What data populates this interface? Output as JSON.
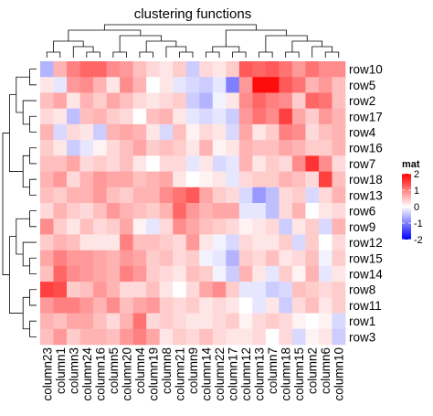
{
  "chart_data": {
    "type": "heatmap",
    "title": "clustering functions",
    "legend": {
      "title": "mat",
      "ticks": [
        2,
        1,
        0,
        -1,
        -2
      ],
      "range": [
        -2,
        2
      ],
      "colors": {
        "low": "#0000ff",
        "mid": "#ffffff",
        "high": "#ff0000"
      },
      "placement": "right"
    },
    "columns": [
      "column23",
      "column1",
      "column3",
      "column24",
      "column16",
      "column5",
      "column20",
      "column4",
      "column19",
      "column8",
      "column21",
      "column9",
      "column14",
      "column22",
      "column17",
      "column12",
      "column13",
      "column7",
      "column18",
      "column15",
      "column2",
      "column6",
      "column10"
    ],
    "rows": [
      "row10",
      "row5",
      "row2",
      "row17",
      "row4",
      "row16",
      "row7",
      "row18",
      "row13",
      "row6",
      "row9",
      "row12",
      "row15",
      "row14",
      "row8",
      "row11",
      "row1",
      "row3"
    ],
    "values": [
      [
        -0.6,
        0.6,
        1.0,
        1.2,
        1.2,
        0.9,
        0.8,
        0.5,
        0.3,
        0.2,
        0.4,
        -0.4,
        0.3,
        0.2,
        0.4,
        1.3,
        1.2,
        1.3,
        1.1,
        0.8,
        1.1,
        0.9,
        0.9
      ],
      [
        0.2,
        -0.2,
        0.8,
        0.9,
        0.6,
        0.2,
        0.9,
        0.6,
        0.0,
        0.2,
        -0.2,
        -0.3,
        -0.4,
        -0.2,
        -1.0,
        0.8,
        1.9,
        1.9,
        1.3,
        1.1,
        0.6,
        0.8,
        0.5
      ],
      [
        0.5,
        0.7,
        0.2,
        0.6,
        0.4,
        0.7,
        0.5,
        0.3,
        0.2,
        0.3,
        0.4,
        -0.4,
        -0.6,
        -0.1,
        0.2,
        0.9,
        1.2,
        1.0,
        0.9,
        0.4,
        1.2,
        1.1,
        0.5
      ],
      [
        0.3,
        0.2,
        -0.5,
        0.5,
        0.6,
        0.4,
        0.3,
        0.0,
        0.5,
        0.6,
        0.2,
        -0.2,
        -0.3,
        -0.2,
        -0.4,
        0.8,
        1.1,
        0.9,
        1.5,
        0.7,
        0.4,
        0.8,
        0.6
      ],
      [
        0.6,
        -0.3,
        0.3,
        0.2,
        -0.4,
        0.6,
        0.7,
        0.6,
        0.2,
        -0.3,
        0.5,
        0.1,
        0.3,
        0.2,
        -0.3,
        0.7,
        0.2,
        0.4,
        1.0,
        0.9,
        0.3,
        0.5,
        0.6
      ],
      [
        0.4,
        0.2,
        -0.4,
        -0.2,
        0.1,
        0.3,
        0.5,
        0.7,
        0.4,
        0.5,
        0.4,
        0.2,
        0.6,
        0.1,
        0.2,
        0.6,
        0.5,
        0.5,
        0.7,
        0.6,
        0.4,
        0.4,
        0.6
      ],
      [
        0.5,
        0.5,
        0.7,
        0.3,
        0.4,
        0.3,
        0.5,
        0.2,
        0.0,
        0.3,
        0.3,
        -0.2,
        0.2,
        -0.3,
        -0.2,
        0.6,
        0.2,
        0.4,
        0.3,
        0.9,
        1.6,
        0.9,
        0.3
      ],
      [
        0.6,
        0.8,
        0.3,
        0.6,
        0.8,
        0.7,
        0.7,
        0.5,
        0.6,
        0.7,
        0.2,
        0.0,
        0.1,
        0.2,
        -0.2,
        0.3,
        0.4,
        0.4,
        0.6,
        0.5,
        0.3,
        1.5,
        0.5
      ],
      [
        0.5,
        0.4,
        0.6,
        0.6,
        0.8,
        0.5,
        0.4,
        0.6,
        0.6,
        0.9,
        1.1,
        1.3,
        0.7,
        0.4,
        0.3,
        -0.3,
        -0.8,
        -0.5,
        0.3,
        0.4,
        -0.3,
        0.3,
        0.6
      ],
      [
        0.3,
        0.6,
        0.4,
        0.3,
        0.5,
        0.8,
        0.6,
        0.5,
        0.4,
        0.6,
        1.2,
        0.8,
        0.6,
        0.7,
        0.7,
        -0.2,
        -0.2,
        -0.5,
        0.3,
        0.6,
        0.0,
        0.2,
        0.3
      ],
      [
        0.9,
        0.4,
        0.2,
        0.5,
        0.3,
        0.4,
        0.7,
        0.1,
        -0.2,
        0.3,
        0.9,
        0.7,
        0.5,
        0.4,
        0.3,
        0.1,
        0.2,
        0.3,
        -0.4,
        0.2,
        0.4,
        -0.3,
        0.6
      ],
      [
        0.4,
        0.6,
        0.5,
        0.2,
        0.2,
        0.2,
        1.0,
        0.5,
        0.5,
        0.4,
        0.3,
        0.8,
        0.2,
        -0.1,
        -0.3,
        0.3,
        0.2,
        0.2,
        0.4,
        -0.3,
        0.4,
        0.0,
        0.3
      ],
      [
        0.7,
        1.0,
        0.8,
        0.8,
        0.7,
        0.6,
        0.8,
        0.7,
        0.4,
        0.5,
        0.3,
        0.4,
        -0.1,
        -0.2,
        -0.6,
        0.4,
        0.3,
        0.5,
        0.2,
        0.3,
        0.5,
        -0.1,
        0.4
      ],
      [
        0.5,
        1.2,
        0.9,
        0.8,
        0.7,
        0.6,
        1.0,
        0.8,
        0.4,
        0.3,
        0.2,
        0.5,
        0.4,
        -0.1,
        -0.4,
        0.6,
        0.2,
        -0.2,
        0.4,
        0.1,
        0.6,
        -0.2,
        0.2
      ],
      [
        1.5,
        1.4,
        0.4,
        0.5,
        0.8,
        0.6,
        0.3,
        0.3,
        0.5,
        0.2,
        0.0,
        0.3,
        0.7,
        0.9,
        0.4,
        -0.2,
        -0.2,
        -0.4,
        -0.3,
        0.5,
        0.4,
        0.3,
        0.4
      ],
      [
        0.8,
        1.0,
        1.0,
        0.8,
        0.6,
        0.9,
        0.5,
        0.7,
        0.8,
        0.4,
        0.3,
        0.4,
        0.2,
        0.3,
        0.2,
        0.0,
        -0.2,
        0.2,
        -0.4,
        0.3,
        0.5,
        0.2,
        0.4
      ],
      [
        0.6,
        0.5,
        0.7,
        0.7,
        0.5,
        0.3,
        0.6,
        1.1,
        0.3,
        0.4,
        0.3,
        0.2,
        0.2,
        0.3,
        0.4,
        0.1,
        0.3,
        0.4,
        0.3,
        0.1,
        0.0,
        0.1,
        -0.3
      ],
      [
        0.5,
        0.8,
        0.4,
        0.6,
        0.6,
        0.5,
        0.8,
        1.0,
        0.7,
        0.2,
        0.4,
        0.3,
        0.5,
        0.3,
        0.2,
        0.2,
        0.3,
        0.0,
        0.3,
        -0.3,
        0.1,
        0.2,
        -0.4
      ]
    ]
  }
}
